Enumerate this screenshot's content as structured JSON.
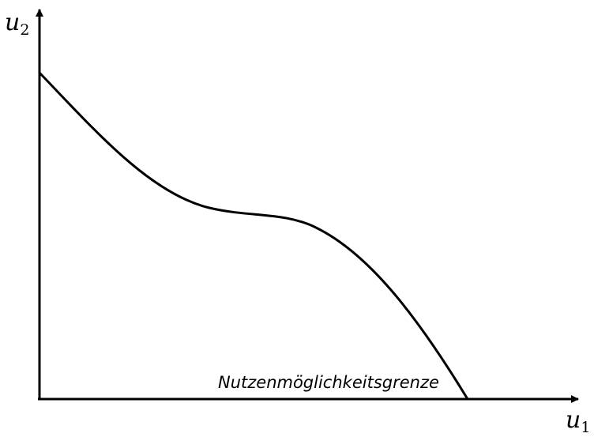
{
  "diagram": {
    "axes": {
      "y_label": {
        "symbol": "u",
        "subscript": "2"
      },
      "x_label": {
        "symbol": "u",
        "subscript": "1"
      }
    },
    "curve": {
      "label": "Nutzenmöglichkeitsgrenze"
    },
    "colors": {
      "line": "#000000",
      "background": "#ffffff"
    }
  }
}
